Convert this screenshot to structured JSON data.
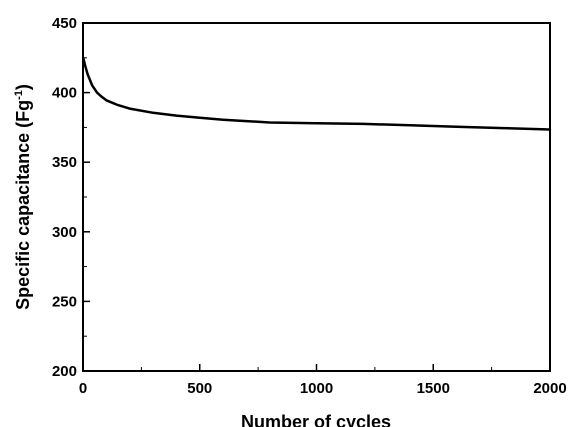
{
  "chart_data": {
    "type": "line",
    "title": "",
    "xlabel": "Number of cycles",
    "ylabel_main": "Specific capacitance (Fg",
    "ylabel_sup": "-1",
    "ylabel_close": ")",
    "xlim": [
      0,
      2000
    ],
    "ylim": [
      200,
      450
    ],
    "xticks": [
      0,
      500,
      1000,
      1500,
      2000
    ],
    "yticks": [
      200,
      250,
      300,
      350,
      400,
      450
    ],
    "grid": false,
    "legend": "none",
    "series": [
      {
        "color": "#000000",
        "x": [
          1,
          10,
          20,
          40,
          60,
          80,
          100,
          150,
          200,
          300,
          400,
          500,
          600,
          700,
          800,
          1000,
          1200,
          1400,
          1600,
          1800,
          2000
        ],
        "y": [
          425,
          419,
          413,
          405,
          400,
          397,
          394.5,
          391,
          388.5,
          385.5,
          383.5,
          382,
          380.5,
          379.5,
          378.5,
          378,
          377.5,
          376.5,
          375.5,
          374.5,
          373.5
        ]
      }
    ]
  }
}
